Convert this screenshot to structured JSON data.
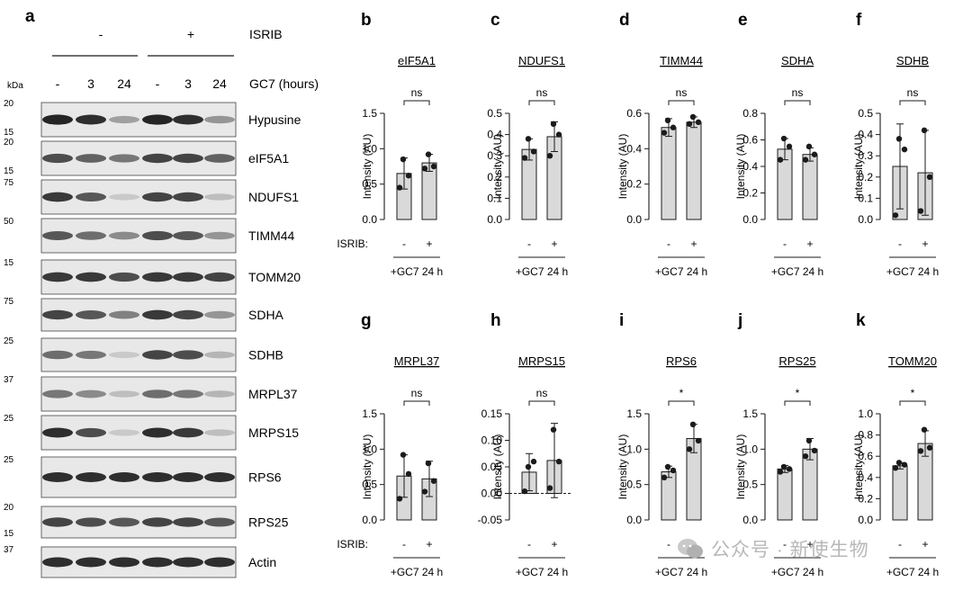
{
  "panel_letters": [
    "a",
    "b",
    "c",
    "d",
    "e",
    "f",
    "g",
    "h",
    "i",
    "j",
    "k"
  ],
  "western_blot": {
    "isrib_label": "ISRIB",
    "isrib_groups": [
      "-",
      "+"
    ],
    "gc7_label": "GC7 (hours)",
    "gc7_lanes": [
      "-",
      "3",
      "24",
      "-",
      "3",
      "24"
    ],
    "kda_label": "kDa",
    "bands": [
      {
        "name": "Hypusine",
        "markers": [
          "20",
          "15"
        ],
        "intensities": [
          0.95,
          0.9,
          0.35,
          0.95,
          0.9,
          0.4
        ]
      },
      {
        "name": "eIF5A1",
        "markers": [
          "20",
          "15"
        ],
        "intensities": [
          0.75,
          0.65,
          0.55,
          0.8,
          0.8,
          0.65
        ]
      },
      {
        "name": "NDUFS1",
        "markers": [
          "75"
        ],
        "intensities": [
          0.85,
          0.7,
          0.15,
          0.8,
          0.8,
          0.2
        ]
      },
      {
        "name": "TIMM44",
        "markers": [
          "50"
        ],
        "intensities": [
          0.7,
          0.6,
          0.45,
          0.75,
          0.7,
          0.4
        ]
      },
      {
        "name": "TOMM20",
        "markers": [
          "15"
        ],
        "intensities": [
          0.85,
          0.85,
          0.75,
          0.85,
          0.85,
          0.8
        ]
      },
      {
        "name": "SDHA",
        "markers": [
          "75"
        ],
        "intensities": [
          0.8,
          0.7,
          0.5,
          0.85,
          0.8,
          0.4
        ]
      },
      {
        "name": "SDHB",
        "markers": [
          "25"
        ],
        "intensities": [
          0.6,
          0.55,
          0.15,
          0.8,
          0.75,
          0.25
        ]
      },
      {
        "name": "MRPL37",
        "markers": [
          "37"
        ],
        "intensities": [
          0.55,
          0.45,
          0.2,
          0.6,
          0.55,
          0.25
        ]
      },
      {
        "name": "MRPS15",
        "markers": [
          "25"
        ],
        "intensities": [
          0.9,
          0.75,
          0.15,
          0.9,
          0.85,
          0.2
        ]
      },
      {
        "name": "RPS6",
        "markers": [
          "25"
        ],
        "intensities": [
          0.9,
          0.9,
          0.9,
          0.9,
          0.9,
          0.9
        ]
      },
      {
        "name": "RPS25",
        "markers": [
          "20",
          "15"
        ],
        "intensities": [
          0.8,
          0.75,
          0.7,
          0.8,
          0.8,
          0.7
        ]
      },
      {
        "name": "Actin",
        "markers": [
          "37"
        ],
        "intensities": [
          0.9,
          0.9,
          0.9,
          0.9,
          0.9,
          0.9
        ]
      }
    ]
  },
  "chart_data": [
    {
      "panel": "b",
      "type": "bar",
      "title": "eIF5A1",
      "ylabel": "Intensity (AU)",
      "ylim": [
        0,
        1.5
      ],
      "yticks": [
        "0.0",
        "0.5",
        "1.0",
        "1.5"
      ],
      "categories": [
        "-",
        "+"
      ],
      "values": [
        0.65,
        0.8
      ],
      "errors": [
        0.22,
        0.12
      ],
      "points": [
        [
          0.85,
          0.45,
          0.62
        ],
        [
          0.92,
          0.72,
          0.75
        ]
      ],
      "significance": "ns",
      "xgroup_label": "ISRIB:",
      "xcaption": "+GC7 24 h"
    },
    {
      "panel": "c",
      "type": "bar",
      "title": "NDUFS1",
      "ylabel": "Intensity (AU)",
      "ylim": [
        0,
        0.5
      ],
      "yticks": [
        "0.0",
        "0.1",
        "0.2",
        "0.3",
        "0.4",
        "0.5"
      ],
      "categories": [
        "-",
        "+"
      ],
      "values": [
        0.33,
        0.39
      ],
      "errors": [
        0.05,
        0.07
      ],
      "points": [
        [
          0.38,
          0.29,
          0.32
        ],
        [
          0.45,
          0.3,
          0.4
        ]
      ],
      "significance": "ns",
      "xgroup_label": "",
      "xcaption": "+GC7 24 h"
    },
    {
      "panel": "d",
      "type": "bar",
      "title": "TIMM44",
      "ylabel": "Intensity (AU)",
      "ylim": [
        0,
        0.6
      ],
      "yticks": [
        "0.0",
        "0.2",
        "0.4",
        "0.6"
      ],
      "categories": [
        "-",
        "+"
      ],
      "values": [
        0.52,
        0.55
      ],
      "errors": [
        0.05,
        0.03
      ],
      "points": [
        [
          0.56,
          0.49,
          0.52
        ],
        [
          0.58,
          0.54,
          0.55
        ]
      ],
      "significance": "ns",
      "xgroup_label": "",
      "xcaption": "+GC7 24 h"
    },
    {
      "panel": "e",
      "type": "bar",
      "title": "SDHA",
      "ylabel": "Intensity (AU)",
      "ylim": [
        0,
        0.8
      ],
      "yticks": [
        "0.0",
        "0.2",
        "0.4",
        "0.6",
        "0.8"
      ],
      "categories": [
        "-",
        "+"
      ],
      "values": [
        0.53,
        0.49
      ],
      "errors": [
        0.08,
        0.05
      ],
      "points": [
        [
          0.61,
          0.45,
          0.55
        ],
        [
          0.55,
          0.45,
          0.49
        ]
      ],
      "significance": "ns",
      "xgroup_label": "",
      "xcaption": "+GC7 24 h"
    },
    {
      "panel": "f",
      "type": "bar",
      "title": "SDHB",
      "ylabel": "Intensity (AU)",
      "ylim": [
        0,
        0.5
      ],
      "yticks": [
        "0.0",
        "0.1",
        "0.2",
        "0.3",
        "0.4",
        "0.5"
      ],
      "categories": [
        "-",
        "+"
      ],
      "values": [
        0.25,
        0.22
      ],
      "errors": [
        0.2,
        0.2
      ],
      "points": [
        [
          0.38,
          0.02,
          0.33
        ],
        [
          0.42,
          0.04,
          0.2
        ]
      ],
      "significance": "ns",
      "xgroup_label": "",
      "xcaption": "+GC7 24 h"
    },
    {
      "panel": "g",
      "type": "bar",
      "title": "MRPL37",
      "ylabel": "Intensity (AU)",
      "ylim": [
        0,
        1.5
      ],
      "yticks": [
        "0.0",
        "0.5",
        "1.0",
        "1.5"
      ],
      "categories": [
        "-",
        "+"
      ],
      "values": [
        0.62,
        0.58
      ],
      "errors": [
        0.3,
        0.25
      ],
      "points": [
        [
          0.92,
          0.3,
          0.65
        ],
        [
          0.8,
          0.4,
          0.55
        ]
      ],
      "significance": "ns",
      "xgroup_label": "ISRIB:",
      "xcaption": "+GC7 24 h"
    },
    {
      "panel": "h",
      "type": "bar",
      "title": "MRPS15",
      "ylabel": "Intensity (AU)",
      "ylim": [
        -0.05,
        0.15
      ],
      "yticks": [
        "-0.05",
        "0.00",
        "0.05",
        "0.10",
        "0.15"
      ],
      "categories": [
        "-",
        "+"
      ],
      "values": [
        0.04,
        0.062
      ],
      "errors": [
        0.035,
        0.07
      ],
      "points": [
        [
          0.05,
          0.004,
          0.06
        ],
        [
          0.12,
          0.01,
          0.06
        ]
      ],
      "significance": "ns",
      "xgroup_label": "",
      "xcaption": "+GC7 24 h"
    },
    {
      "panel": "i",
      "type": "bar",
      "title": "RPS6",
      "ylabel": "Intensity (AU)",
      "ylim": [
        0,
        1.5
      ],
      "yticks": [
        "0.0",
        "0.5",
        "1.0",
        "1.5"
      ],
      "categories": [
        "-",
        "+"
      ],
      "values": [
        0.68,
        1.15
      ],
      "errors": [
        0.08,
        0.2
      ],
      "points": [
        [
          0.75,
          0.6,
          0.7
        ],
        [
          1.35,
          1.0,
          1.12
        ]
      ],
      "significance": "*",
      "xgroup_label": "",
      "xcaption": "+GC7 24 h"
    },
    {
      "panel": "j",
      "type": "bar",
      "title": "RPS25",
      "ylabel": "Intensity (AU)",
      "ylim": [
        0,
        1.5
      ],
      "yticks": [
        "0.0",
        "0.5",
        "1.0",
        "1.5"
      ],
      "categories": [
        "-",
        "+"
      ],
      "values": [
        0.72,
        1.0
      ],
      "errors": [
        0.05,
        0.15
      ],
      "points": [
        [
          0.75,
          0.68,
          0.72
        ],
        [
          1.12,
          0.9,
          0.98
        ]
      ],
      "significance": "*",
      "xgroup_label": "",
      "xcaption": "+GC7 24 h"
    },
    {
      "panel": "k",
      "type": "bar",
      "title": "TOMM20",
      "ylabel": "Intensity (AU)",
      "ylim": [
        0,
        1.0
      ],
      "yticks": [
        "0.0",
        "0.2",
        "0.4",
        "0.6",
        "0.8",
        "1.0"
      ],
      "categories": [
        "-",
        "+"
      ],
      "values": [
        0.51,
        0.72
      ],
      "errors": [
        0.03,
        0.12
      ],
      "points": [
        [
          0.54,
          0.49,
          0.52
        ],
        [
          0.85,
          0.65,
          0.68
        ]
      ],
      "significance": "*",
      "xgroup_label": "",
      "xcaption": "+GC7 24 h"
    }
  ],
  "watermark": {
    "text": "公众号 · 新使生物"
  },
  "colors": {
    "bar_fill": "#d9d9d9",
    "ink": "#1b1b1b",
    "blot_bg": "#e8e8e8",
    "band": "#1a1a1a"
  }
}
